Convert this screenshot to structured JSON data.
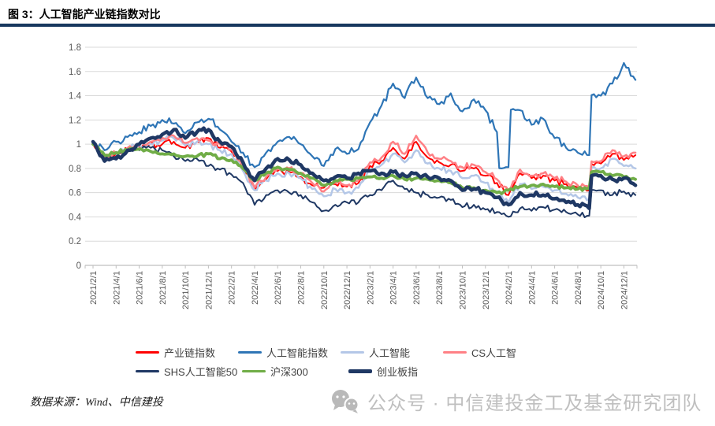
{
  "title": "图 3：人工智能产业链指数对比",
  "footer": {
    "source_label": "数据来源：Wind、中信建投"
  },
  "watermark": {
    "icon": "wechat-icon",
    "text": "公众号 · 中信建投金工及基金研究团队"
  },
  "colors": {
    "header_rule": "#17375E",
    "grid": "#D9D9D9",
    "axis": "#BFBFBF",
    "tick_text": "#595959",
    "legend_text": "#404040",
    "watermark": "#BFBFBF"
  },
  "chart_data": {
    "type": "line",
    "title": "人工智能产业链指数对比",
    "x_start": "2021/2/1",
    "x_interval": "1 month",
    "x_tick_labels": [
      "2021/2/1",
      "2021/4/1",
      "2021/6/1",
      "2021/8/1",
      "2021/10/1",
      "2021/12/1",
      "2022/2/1",
      "2022/4/1",
      "2022/6/1",
      "2022/8/1",
      "2022/10/1",
      "2022/12/1",
      "2023/2/1",
      "2023/4/1",
      "2023/6/1",
      "2023/8/1",
      "2023/10/1",
      "2023/12/1",
      "2024/2/1",
      "2024/4/1",
      "2024/6/1",
      "2024/8/1",
      "2024/10/1",
      "2024/12/1"
    ],
    "ylim": [
      0,
      1.8
    ],
    "yticks": [
      0,
      0.2,
      0.4,
      0.6,
      0.8,
      1,
      1.2,
      1.4,
      1.6,
      1.8
    ],
    "grid": true,
    "legend_position": "bottom",
    "series": [
      {
        "name": "产业链指数",
        "color": "#FF0000",
        "width": 2,
        "noise": 0.03,
        "values": [
          1.0,
          0.89,
          0.92,
          0.96,
          0.98,
          1.0,
          1.0,
          1.02,
          0.97,
          1.02,
          1.05,
          0.97,
          0.94,
          0.8,
          0.62,
          0.71,
          0.78,
          0.77,
          0.73,
          0.66,
          0.64,
          0.67,
          0.65,
          0.68,
          0.82,
          0.86,
          0.97,
          0.88,
          1.02,
          0.89,
          0.85,
          0.83,
          0.78,
          0.8,
          0.74,
          0.68,
          0.58,
          0.76,
          0.72,
          0.74,
          0.7,
          0.67,
          0.64,
          0.62,
          0.84,
          0.92,
          0.87,
          0.91
        ]
      },
      {
        "name": "人工智能指数",
        "color": "#2E75B6",
        "width": 2.2,
        "noise": 0.035,
        "values": [
          1.0,
          0.95,
          1.02,
          1.06,
          1.1,
          1.15,
          1.2,
          1.17,
          1.09,
          1.18,
          1.21,
          1.12,
          1.02,
          0.93,
          0.81,
          0.93,
          1.02,
          1.06,
          1.0,
          0.9,
          0.82,
          0.96,
          0.92,
          0.96,
          1.18,
          1.32,
          1.5,
          1.38,
          1.55,
          1.38,
          1.33,
          1.42,
          1.27,
          1.37,
          1.28,
          1.1,
          0.81,
          1.28,
          1.16,
          1.21,
          1.05,
          0.97,
          0.93,
          0.91,
          1.4,
          1.5,
          1.67,
          1.53
        ]
      },
      {
        "name": "人工智能",
        "color": "#B4C7E7",
        "width": 2.5,
        "noise": 0.03,
        "values": [
          1.0,
          0.9,
          0.92,
          0.96,
          0.99,
          1.0,
          1.03,
          1.05,
          0.99,
          1.02,
          1.0,
          0.95,
          0.92,
          0.78,
          0.62,
          0.7,
          0.76,
          0.76,
          0.72,
          0.63,
          0.57,
          0.63,
          0.6,
          0.64,
          0.78,
          0.83,
          0.92,
          0.85,
          0.95,
          0.84,
          0.8,
          0.78,
          0.72,
          0.74,
          0.68,
          0.61,
          0.52,
          0.67,
          0.63,
          0.65,
          0.62,
          0.59,
          0.56,
          0.55,
          0.8,
          0.88,
          0.82,
          0.8
        ]
      },
      {
        "name": "CS人工智",
        "color": "#FF8085",
        "width": 2.5,
        "noise": 0.03,
        "values": [
          1.0,
          0.9,
          0.93,
          0.97,
          1.0,
          1.02,
          1.05,
          1.07,
          1.01,
          1.05,
          1.03,
          1.0,
          0.96,
          0.82,
          0.64,
          0.73,
          0.8,
          0.8,
          0.76,
          0.68,
          0.61,
          0.68,
          0.66,
          0.7,
          0.85,
          0.89,
          1.02,
          0.92,
          1.07,
          0.93,
          0.88,
          0.86,
          0.81,
          0.83,
          0.77,
          0.71,
          0.62,
          0.79,
          0.74,
          0.76,
          0.72,
          0.69,
          0.66,
          0.64,
          0.86,
          0.95,
          0.9,
          0.93
        ]
      },
      {
        "name": "SHS人工智能50",
        "color": "#1F3864",
        "width": 2,
        "noise": 0.03,
        "values": [
          1.0,
          0.88,
          0.9,
          0.94,
          0.95,
          0.97,
          0.95,
          0.9,
          0.86,
          0.88,
          0.82,
          0.79,
          0.75,
          0.68,
          0.5,
          0.58,
          0.62,
          0.6,
          0.58,
          0.52,
          0.45,
          0.5,
          0.52,
          0.52,
          0.58,
          0.62,
          0.7,
          0.63,
          0.6,
          0.58,
          0.56,
          0.54,
          0.48,
          0.5,
          0.46,
          0.44,
          0.4,
          0.47,
          0.45,
          0.48,
          0.46,
          0.44,
          0.42,
          0.41,
          0.62,
          0.58,
          0.61,
          0.58
        ]
      },
      {
        "name": "沪深300",
        "color": "#70AD47",
        "width": 3.8,
        "noise": 0.018,
        "values": [
          1.0,
          0.91,
          0.93,
          0.95,
          0.96,
          0.94,
          0.92,
          0.92,
          0.9,
          0.9,
          0.92,
          0.88,
          0.87,
          0.8,
          0.7,
          0.76,
          0.81,
          0.79,
          0.76,
          0.72,
          0.66,
          0.7,
          0.71,
          0.72,
          0.73,
          0.72,
          0.74,
          0.71,
          0.72,
          0.71,
          0.7,
          0.68,
          0.64,
          0.64,
          0.62,
          0.6,
          0.62,
          0.65,
          0.66,
          0.67,
          0.65,
          0.64,
          0.63,
          0.64,
          0.77,
          0.74,
          0.73,
          0.71
        ]
      },
      {
        "name": "创业板指",
        "color": "#1F3864",
        "width": 4.5,
        "noise": 0.025,
        "values": [
          1.02,
          0.86,
          0.88,
          0.95,
          1.0,
          1.05,
          1.08,
          1.12,
          1.05,
          1.1,
          1.12,
          1.02,
          0.98,
          0.85,
          0.7,
          0.8,
          0.88,
          0.87,
          0.83,
          0.76,
          0.7,
          0.73,
          0.72,
          0.76,
          0.78,
          0.76,
          0.77,
          0.74,
          0.76,
          0.73,
          0.72,
          0.7,
          0.62,
          0.63,
          0.6,
          0.56,
          0.5,
          0.6,
          0.58,
          0.58,
          0.55,
          0.52,
          0.5,
          0.47,
          0.74,
          0.71,
          0.72,
          0.66
        ]
      }
    ]
  }
}
